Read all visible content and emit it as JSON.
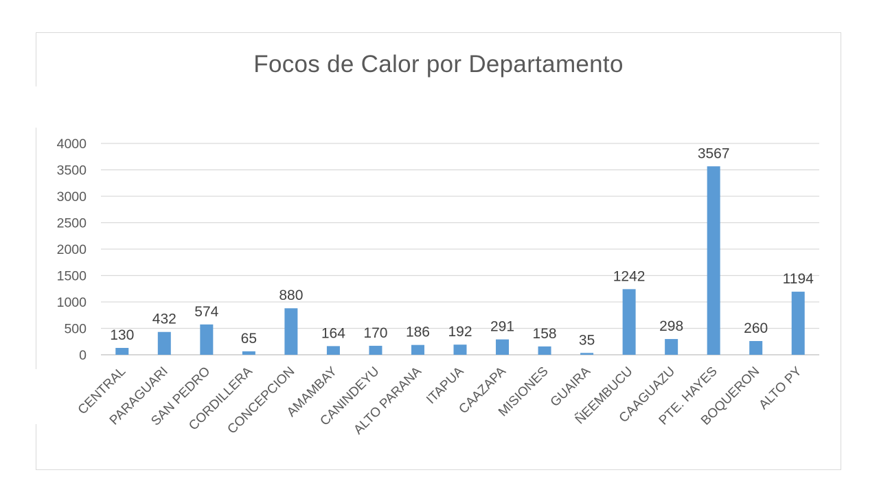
{
  "chart_data": {
    "type": "bar",
    "title": "Focos de Calor por Departamento",
    "xlabel": "",
    "ylabel": "",
    "ylim": [
      0,
      4000
    ],
    "yticks": [
      "0",
      "500",
      "1000",
      "1500",
      "2000",
      "2500",
      "3000",
      "3500",
      "4000"
    ],
    "grid": true,
    "legend": "none",
    "bar_color": "#5b9bd5",
    "categories": [
      "CENTRAL",
      "PARAGUARI",
      "SAN PEDRO",
      "CORDILLERA",
      "CONCEPCION",
      "AMAMBAY",
      "CANINDEYU",
      "ALTO PARANA",
      "ITAPUA",
      "CAAZAPA",
      "MISIONES",
      "GUAIRA",
      "ÑEEMBUCU",
      "CAAGUAZU",
      "PTE. HAYES",
      "BOQUERON",
      "ALTO PY"
    ],
    "values": [
      130,
      432,
      574,
      65,
      880,
      164,
      170,
      186,
      192,
      291,
      158,
      35,
      1242,
      298,
      3567,
      260,
      1194
    ]
  }
}
